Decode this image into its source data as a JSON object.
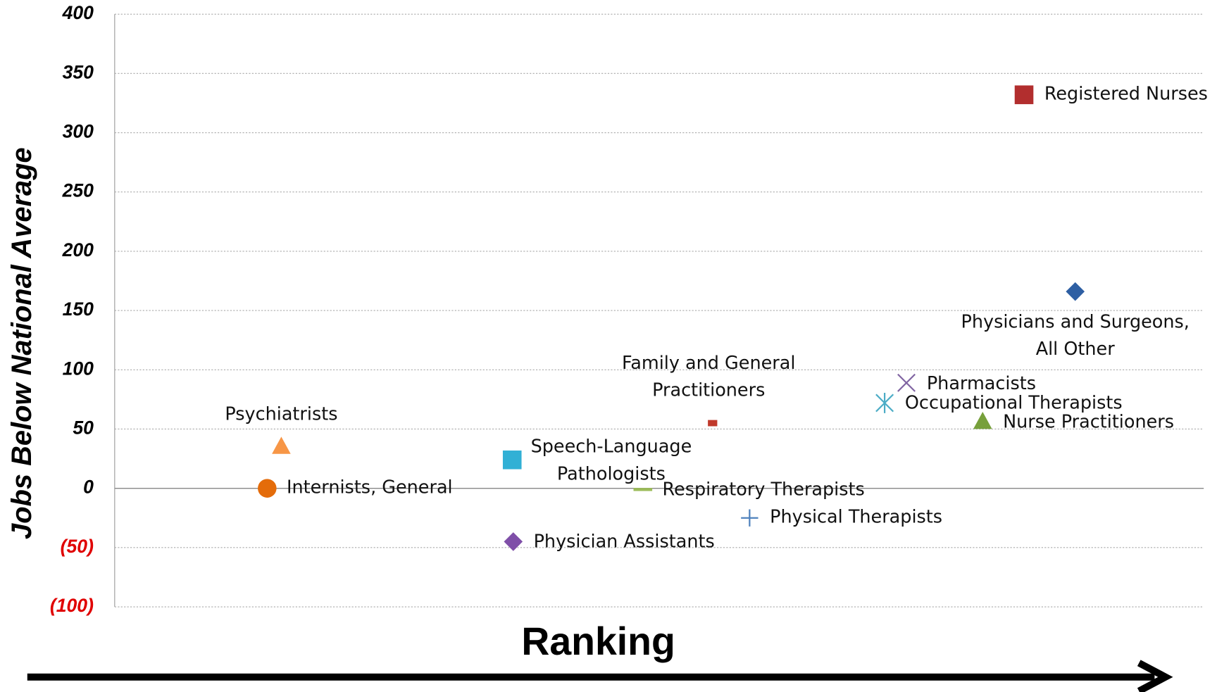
{
  "chart_data": {
    "type": "scatter",
    "xlabel": "Ranking",
    "ylabel": "Jobs Below National Average",
    "xlim": [
      0,
      100
    ],
    "ylim": [
      -100,
      400
    ],
    "yticks": [
      {
        "value": -100,
        "label": "(100)"
      },
      {
        "value": -50,
        "label": "(50)"
      },
      0,
      50,
      100,
      150,
      200,
      250,
      300,
      350,
      400
    ],
    "grid": true,
    "negative_tick_color": "#e00000",
    "series": [
      {
        "name": "Internists, General",
        "color": "#e46c0a",
        "marker": "circle",
        "x": [
          14
        ],
        "values": [
          0
        ]
      },
      {
        "name": "Psychiatrists",
        "color": "#f79646",
        "marker": "triangle",
        "x": [
          15.3
        ],
        "values": [
          35
        ]
      },
      {
        "name": "Speech-Language\nPathologists",
        "color": "#31b0d5",
        "marker": "square",
        "x": [
          36.5
        ],
        "values": [
          24
        ]
      },
      {
        "name": "Physician Assistants",
        "color": "#7f4fa8",
        "marker": "diamond",
        "x": [
          36.6
        ],
        "values": [
          -45
        ]
      },
      {
        "name": "Respiratory Therapists",
        "color": "#9bbb59",
        "marker": "dash",
        "x": [
          48.5
        ],
        "values": [
          -1
        ]
      },
      {
        "name": "Family and General\nPractitioners",
        "color": "#c0392b",
        "marker": "small-square",
        "x": [
          54.9
        ],
        "values": [
          55
        ]
      },
      {
        "name": "Physical Therapists",
        "color": "#4f81bd",
        "marker": "plus",
        "x": [
          58.3
        ],
        "values": [
          -25
        ]
      },
      {
        "name": "Occupational Therapists",
        "color": "#4bacc6",
        "marker": "asterisk",
        "x": [
          70.7
        ],
        "values": [
          72
        ]
      },
      {
        "name": "Pharmacists",
        "color": "#8064a2",
        "marker": "cross",
        "x": [
          72.7
        ],
        "values": [
          89
        ]
      },
      {
        "name": "Nurse Practitioners",
        "color": "#77a03b",
        "marker": "triangle",
        "x": [
          79.7
        ],
        "values": [
          56
        ]
      },
      {
        "name": "Physicians and Surgeons,\nAll Other",
        "color": "#2e5fa3",
        "marker": "diamond",
        "x": [
          88.2
        ],
        "values": [
          166
        ]
      },
      {
        "name": "Registered Nurses",
        "color": "#b22e2e",
        "marker": "square",
        "x": [
          83.5
        ],
        "values": [
          332
        ]
      }
    ]
  }
}
